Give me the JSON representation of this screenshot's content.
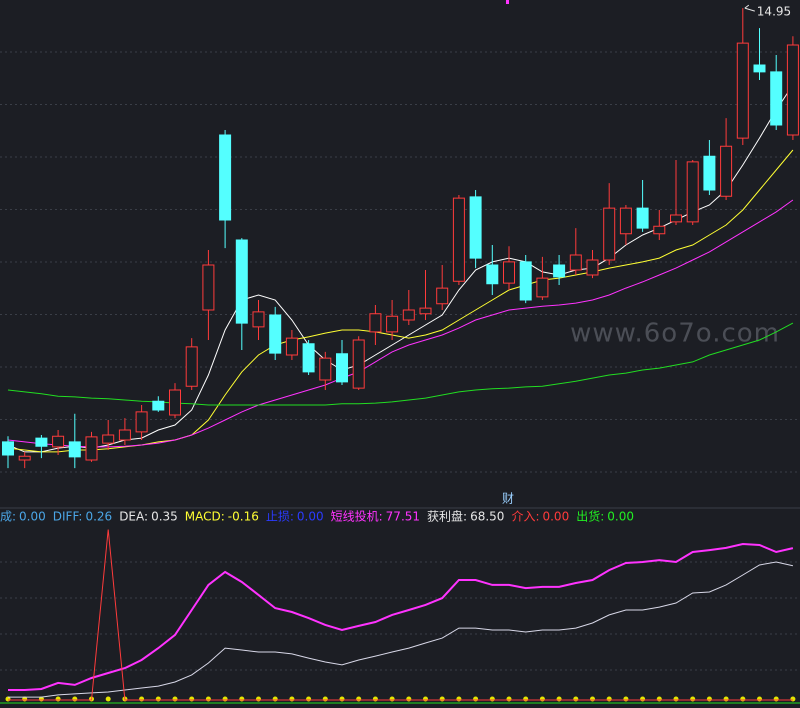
{
  "chart_data": [
    {
      "type": "candlestick",
      "ylim": [
        7.4,
        15.08
      ],
      "grid": true,
      "up_color": "#ff3b3b",
      "down_color": "#54ffff",
      "annotation": 14.95,
      "marker": "财",
      "watermark": "www.6o7o.com",
      "open": [
        8.01,
        7.72,
        8.07,
        7.93,
        8.01,
        7.72,
        7.99,
        8.04,
        8.17,
        8.66,
        8.44,
        8.9,
        10.12,
        12.92,
        11.24,
        9.85,
        10.04,
        9.4,
        9.58,
        9.0,
        9.42,
        8.87,
        9.77,
        9.77,
        9.96,
        10.06,
        10.22,
        10.58,
        11.93,
        10.84,
        10.55,
        10.89,
        10.33,
        10.84,
        10.76,
        10.68,
        10.92,
        11.34,
        11.75,
        11.34,
        11.53,
        11.53,
        12.58,
        11.94,
        12.87,
        14.04,
        13.93,
        12.92
      ],
      "close": [
        7.8,
        7.78,
        7.94,
        8.1,
        7.77,
        8.09,
        8.12,
        8.2,
        8.49,
        8.52,
        8.84,
        9.53,
        10.84,
        11.56,
        9.91,
        10.09,
        9.43,
        9.67,
        9.13,
        9.35,
        8.97,
        9.64,
        10.06,
        10.02,
        10.12,
        10.15,
        10.47,
        11.91,
        10.95,
        10.54,
        10.89,
        10.28,
        10.63,
        10.65,
        11.0,
        10.92,
        11.75,
        11.75,
        11.43,
        11.46,
        11.64,
        12.49,
        12.04,
        12.74,
        14.39,
        13.93,
        13.08,
        14.36
      ],
      "high": [
        8.1,
        7.85,
        8.12,
        8.2,
        8.46,
        8.17,
        8.36,
        8.39,
        8.6,
        8.74,
        8.95,
        9.67,
        11.08,
        13.0,
        11.27,
        10.28,
        10.17,
        9.8,
        9.64,
        9.45,
        9.64,
        9.7,
        10.2,
        10.28,
        10.44,
        10.76,
        10.84,
        11.96,
        12.04,
        11.16,
        11.14,
        11.0,
        10.97,
        11.0,
        11.43,
        11.08,
        12.15,
        11.8,
        12.2,
        11.72,
        12.52,
        12.52,
        12.84,
        13.19,
        14.95,
        14.63,
        14.2,
        14.5
      ],
      "low": [
        7.59,
        7.59,
        7.75,
        7.8,
        7.59,
        7.69,
        7.88,
        7.96,
        8.04,
        8.49,
        8.39,
        8.84,
        9.64,
        11.11,
        9.48,
        9.64,
        9.32,
        9.32,
        9.08,
        8.84,
        8.92,
        8.84,
        9.56,
        9.64,
        9.88,
        9.96,
        10.12,
        10.52,
        10.79,
        10.36,
        10.44,
        10.23,
        10.28,
        10.52,
        10.68,
        10.63,
        10.84,
        11.16,
        11.37,
        11.24,
        11.48,
        11.48,
        11.96,
        11.88,
        12.76,
        13.8,
        13.0,
        12.84
      ],
      "series": [
        {
          "color": "#ffffff",
          "values": [
            7.96,
            7.85,
            7.85,
            7.91,
            7.94,
            7.91,
            7.96,
            8.04,
            8.07,
            8.2,
            8.28,
            8.52,
            9.08,
            9.8,
            10.28,
            10.36,
            10.28,
            9.96,
            9.56,
            9.32,
            9.16,
            9.24,
            9.4,
            9.56,
            9.72,
            9.88,
            10.04,
            10.44,
            10.76,
            10.89,
            10.95,
            10.89,
            10.73,
            10.68,
            10.76,
            10.79,
            10.95,
            11.16,
            11.32,
            11.43,
            11.56,
            11.69,
            11.8,
            12.04,
            12.44,
            12.87,
            13.32,
            13.72
          ]
        },
        {
          "color": "#ffff33",
          "values": [
            7.91,
            7.88,
            7.85,
            7.85,
            7.88,
            7.88,
            7.9,
            7.93,
            7.96,
            8.01,
            8.04,
            8.12,
            8.36,
            8.76,
            9.13,
            9.4,
            9.56,
            9.64,
            9.69,
            9.75,
            9.8,
            9.8,
            9.77,
            9.72,
            9.67,
            9.72,
            9.8,
            9.96,
            10.12,
            10.28,
            10.44,
            10.52,
            10.6,
            10.63,
            10.68,
            10.73,
            10.79,
            10.84,
            10.89,
            10.95,
            11.08,
            11.16,
            11.32,
            11.48,
            11.72,
            12.04,
            12.36,
            12.68
          ]
        },
        {
          "color": "#ff33ff",
          "values": [
            8.04,
            8.01,
            7.98,
            7.96,
            7.94,
            7.93,
            7.93,
            7.94,
            7.96,
            7.99,
            8.04,
            8.12,
            8.23,
            8.36,
            8.49,
            8.6,
            8.68,
            8.76,
            8.84,
            8.92,
            9.03,
            9.13,
            9.29,
            9.45,
            9.56,
            9.64,
            9.72,
            9.83,
            9.96,
            10.04,
            10.12,
            10.15,
            10.18,
            10.2,
            10.23,
            10.28,
            10.36,
            10.47,
            10.57,
            10.68,
            10.79,
            10.92,
            11.05,
            11.21,
            11.37,
            11.53,
            11.69,
            11.88
          ]
        },
        {
          "color": "#22dd22",
          "values": [
            8.84,
            8.81,
            8.78,
            8.74,
            8.73,
            8.71,
            8.7,
            8.68,
            8.66,
            8.65,
            8.63,
            8.62,
            8.6,
            8.6,
            8.6,
            8.6,
            8.6,
            8.6,
            8.6,
            8.6,
            8.62,
            8.62,
            8.63,
            8.65,
            8.68,
            8.71,
            8.76,
            8.81,
            8.84,
            8.86,
            8.87,
            8.89,
            8.9,
            8.94,
            8.98,
            9.03,
            9.08,
            9.11,
            9.16,
            9.19,
            9.24,
            9.29,
            9.4,
            9.48,
            9.56,
            9.64,
            9.77,
            9.91
          ]
        }
      ]
    },
    {
      "type": "line",
      "ylim": [
        0,
        100
      ],
      "grid": true,
      "indicators": {
        "names": [
          "成:",
          "DIFF:",
          "DEA:",
          "MACD:",
          "止损:",
          "短线投机:",
          "获利盘:",
          "介入:",
          "出货:"
        ],
        "colors": [
          "#4ba6e6",
          "#4ba6e6",
          "#e6e6e6",
          "#ffff33",
          "#2b3bff",
          "#ff33ff",
          "#e6e6e6",
          "#ff3b3b",
          "#22ee22"
        ],
        "values": [
          0,
          0.26,
          0.35,
          -0.16,
          0,
          77.51,
          68.5,
          0,
          0
        ],
        "value_labels": [
          "0.00",
          "0.26",
          "0.35",
          "-0.16",
          "0.00",
          "77.51",
          "68.50",
          "0.00",
          "0.00"
        ]
      },
      "series": [
        {
          "color": "#ff33ff",
          "values": [
            5.1,
            5.1,
            5.6,
            8.7,
            7.7,
            11.2,
            13.8,
            16.3,
            20.4,
            26.5,
            33.2,
            45.9,
            58.7,
            65.3,
            60.2,
            53.6,
            46.9,
            44.9,
            41.8,
            38.3,
            35.7,
            37.8,
            39.8,
            43.4,
            45.9,
            48.5,
            52.0,
            61.2,
            61.2,
            58.7,
            58.7,
            57.1,
            57.7,
            57.7,
            59.7,
            61.2,
            66.3,
            69.9,
            70.4,
            71.4,
            70.4,
            75.5,
            76.5,
            77.6,
            79.6,
            79.1,
            75.5,
            77.51
          ]
        },
        {
          "color": "#d8d8e8",
          "values": [
            1.5,
            1.5,
            1.5,
            2.6,
            3.1,
            3.6,
            4.1,
            5.1,
            6.1,
            7.1,
            9.2,
            12.8,
            18.9,
            26.5,
            25.5,
            24.5,
            24.5,
            23.5,
            21.4,
            19.4,
            17.9,
            20.4,
            22.4,
            24.5,
            26.5,
            29.1,
            31.6,
            36.7,
            36.7,
            35.7,
            35.7,
            34.7,
            35.7,
            35.7,
            36.7,
            39.3,
            43.4,
            45.9,
            45.9,
            47.4,
            49.5,
            54.6,
            55.1,
            58.7,
            63.8,
            68.9,
            70.4,
            68.5
          ]
        },
        {
          "color": "#ff3b3b",
          "values": [
            0,
            0,
            0,
            0,
            0,
            0,
            87,
            0,
            0,
            0,
            0,
            0,
            0,
            0,
            0,
            0,
            0,
            0,
            0,
            0,
            0,
            0,
            0,
            0,
            0,
            0,
            0,
            0,
            0,
            0,
            0,
            0,
            0,
            0,
            0,
            0,
            0,
            0,
            0,
            0,
            0,
            0,
            0,
            0,
            0,
            0,
            0,
            0
          ]
        }
      ]
    }
  ]
}
